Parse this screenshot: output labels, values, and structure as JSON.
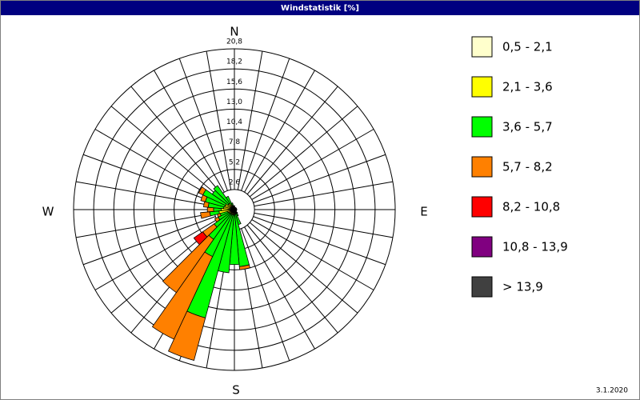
{
  "chart_data": {
    "type": "windrose",
    "title": "Windstatistik [%]",
    "date": "3.1.2020",
    "compass": [
      "N",
      "E",
      "S",
      "W"
    ],
    "x": [
      0,
      10,
      20,
      30,
      40,
      50,
      60,
      70,
      80,
      90,
      100,
      110,
      120,
      130,
      140,
      150,
      160,
      170,
      180,
      190,
      200,
      210,
      220,
      230,
      240,
      250,
      260,
      270,
      280,
      290,
      300,
      310,
      320,
      330,
      340,
      350
    ],
    "rlim": [
      0,
      20.8
    ],
    "rticks": [
      {
        "value": 2.6,
        "label": "2,6"
      },
      {
        "value": 5.2,
        "label": "5,2"
      },
      {
        "value": 7.8,
        "label": "7,8"
      },
      {
        "value": 10.4,
        "label": "10,4"
      },
      {
        "value": 13.0,
        "label": "13,0"
      },
      {
        "value": 15.6,
        "label": "15,6"
      },
      {
        "value": 18.2,
        "label": "18,2"
      },
      {
        "value": 20.8,
        "label": "20,8"
      }
    ],
    "series": [
      {
        "name": "0,5 - 2,1",
        "color": "#ffffcc",
        "values": [
          0.1,
          0.1,
          0.1,
          0.1,
          0.1,
          0.1,
          0.1,
          0.1,
          0.1,
          0.1,
          0.1,
          0.1,
          0.1,
          0.1,
          0.1,
          0.1,
          0.2,
          0.2,
          0.2,
          0.2,
          0.2,
          0.2,
          0.2,
          0.2,
          0.3,
          0.3,
          0.5,
          0.5,
          0.4,
          0.3,
          0.3,
          0.2,
          0.2,
          0.2,
          0.1,
          0.1
        ]
      },
      {
        "name": "2,1 - 3,6",
        "color": "#ffff00",
        "values": [
          0.2,
          0.1,
          0.1,
          0.1,
          0.1,
          0.1,
          0.1,
          0.1,
          0.1,
          0.1,
          0.1,
          0.1,
          0.1,
          0.1,
          0.2,
          0.2,
          0.3,
          0.4,
          0.4,
          0.5,
          0.5,
          0.5,
          0.5,
          0.5,
          0.5,
          0.6,
          1.5,
          1.2,
          1.0,
          1.0,
          1.0,
          0.8,
          0.8,
          0.5,
          0.3,
          0.2
        ]
      },
      {
        "name": "3,6 - 5,7",
        "color": "#00ff00",
        "values": [
          0.2,
          0.1,
          0.1,
          0.1,
          0.1,
          0.1,
          0.1,
          0.1,
          0.1,
          0.1,
          0.1,
          0.1,
          0.1,
          0.1,
          0.3,
          0.6,
          1.5,
          6.8,
          6.5,
          7.5,
          13.8,
          6.0,
          4.0,
          2.5,
          1.5,
          1.0,
          1.2,
          1.0,
          2.0,
          2.6,
          3.2,
          2.5,
          2.8,
          1.2,
          0.5,
          0.2
        ]
      },
      {
        "name": "5,7 - 8,2",
        "color": "#ff8000",
        "values": [
          0,
          0,
          0,
          0,
          0,
          0,
          0,
          0,
          0,
          0,
          0,
          0,
          0,
          0,
          0,
          0,
          0,
          0.4,
          0,
          0,
          5.7,
          11.8,
          8.4,
          1.8,
          0.5,
          0.4,
          1.2,
          0.8,
          0.6,
          0.6,
          0.6,
          0,
          0,
          0,
          0,
          0
        ]
      },
      {
        "name": "8,2 - 10,8",
        "color": "#ff0000",
        "values": [
          0,
          0,
          0,
          0,
          0,
          0,
          0,
          0,
          0,
          0,
          0,
          0,
          0,
          0,
          0,
          0,
          0,
          0,
          0,
          0,
          0,
          0,
          0,
          1.4,
          0,
          0,
          0,
          0,
          0,
          0,
          0,
          0,
          0,
          0,
          0,
          0
        ]
      },
      {
        "name": "10,8 - 13,9",
        "color": "#800080",
        "values": [
          0,
          0,
          0,
          0,
          0,
          0,
          0,
          0,
          0,
          0,
          0,
          0,
          0,
          0,
          0,
          0,
          0,
          0,
          0,
          0,
          0,
          0,
          0,
          0,
          0,
          0,
          0,
          0,
          0,
          0,
          0,
          0,
          0,
          0,
          0,
          0
        ]
      },
      {
        "name": "> 13,9",
        "color": "#404040",
        "values": [
          0,
          0,
          0,
          0,
          0,
          0,
          0,
          0,
          0,
          0,
          0,
          0,
          0,
          0,
          0,
          0,
          0,
          0,
          0,
          0,
          0,
          0,
          0,
          0,
          0,
          0,
          0,
          0,
          0,
          0,
          0,
          0,
          0,
          0,
          0,
          0
        ]
      }
    ]
  }
}
